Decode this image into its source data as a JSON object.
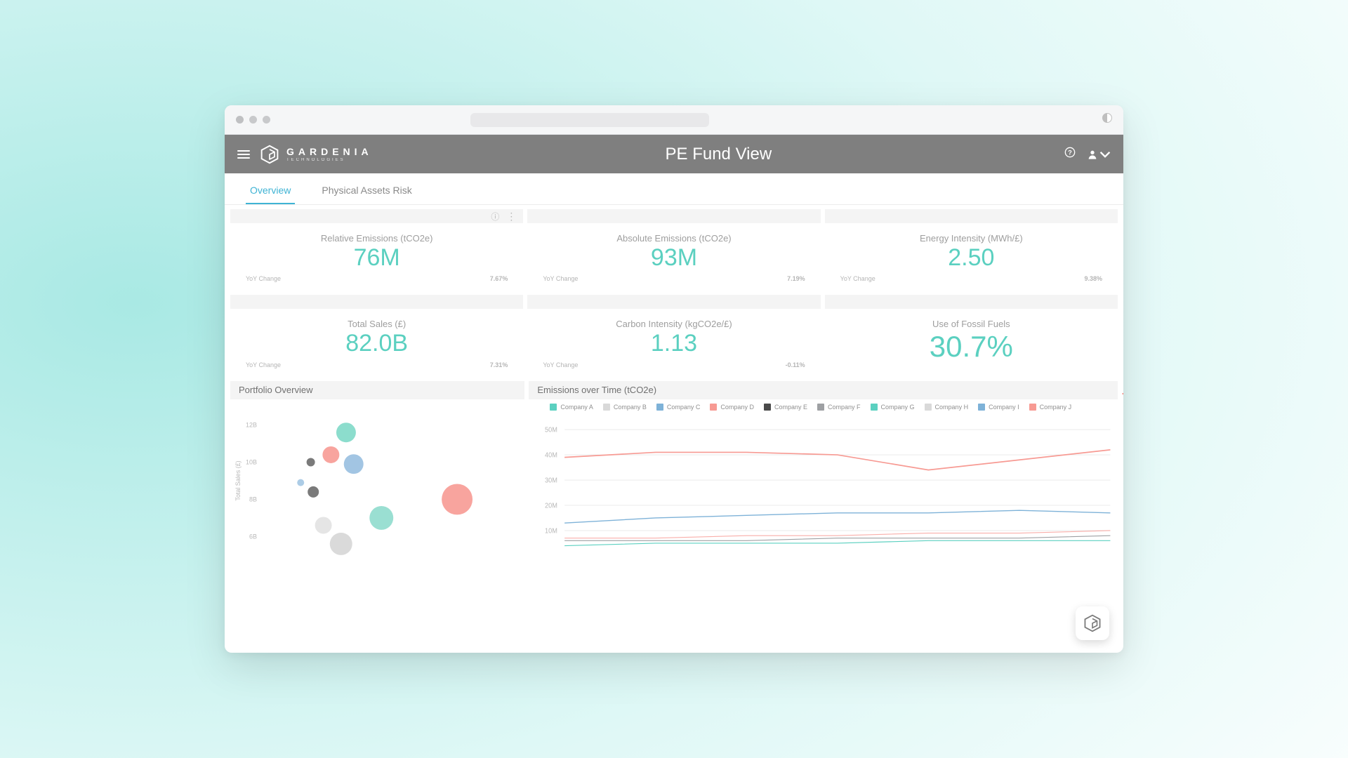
{
  "brand": {
    "name": "GARDENIA",
    "tagline": "TECHNOLOGIES"
  },
  "page_title": "PE Fund View",
  "tabs": [
    {
      "label": "Overview",
      "active": true
    },
    {
      "label": "Physical Assets Risk",
      "active": false
    }
  ],
  "kpi": [
    {
      "label": "Relative Emissions (tCO2e)",
      "value": "76M",
      "yoy_label": "YoY Change",
      "yoy_value": "7.67%",
      "show_icons": true
    },
    {
      "label": "Absolute Emissions (tCO2e)",
      "value": "93M",
      "yoy_label": "YoY Change",
      "yoy_value": "7.19%"
    },
    {
      "label": "Energy Intensity (MWh/£)",
      "value": "2.50",
      "yoy_label": "YoY Change",
      "yoy_value": "9.38%"
    },
    {
      "label": "Total Sales (£)",
      "value": "82.0B",
      "yoy_label": "YoY Change",
      "yoy_value": "7.31%"
    },
    {
      "label": "Carbon Intensity (kgCO2e/£)",
      "value": "1.13",
      "yoy_label": "YoY Change",
      "yoy_value": "-0.11%"
    },
    {
      "label": "Use of Fossil Fuels",
      "value": "30.7%",
      "big": true
    }
  ],
  "portfolio_chart": {
    "title": "Portfolio Overview",
    "y_axis_label": "Total Sales (£)",
    "y_ticks": [
      "12B",
      "10B",
      "8B",
      "6B"
    ],
    "y_tick_vals": [
      12,
      10,
      8,
      6
    ],
    "y_domain": [
      5,
      13
    ],
    "x_domain": [
      0,
      10
    ],
    "bubbles": [
      {
        "x": 3.2,
        "y": 11.6,
        "r": 14,
        "color": "#7fd9c8"
      },
      {
        "x": 2.6,
        "y": 10.4,
        "r": 12,
        "color": "#f79a93"
      },
      {
        "x": 1.8,
        "y": 10.0,
        "r": 6,
        "color": "#6b6b6b"
      },
      {
        "x": 3.5,
        "y": 9.9,
        "r": 14,
        "color": "#98bfe0"
      },
      {
        "x": 1.4,
        "y": 8.9,
        "r": 5,
        "color": "#a3c7e3"
      },
      {
        "x": 1.9,
        "y": 8.4,
        "r": 8,
        "color": "#6c6c6c"
      },
      {
        "x": 7.6,
        "y": 8.0,
        "r": 22,
        "color": "#f79a93"
      },
      {
        "x": 4.6,
        "y": 7.0,
        "r": 17,
        "color": "#8fdccd"
      },
      {
        "x": 2.3,
        "y": 6.6,
        "r": 12,
        "color": "#e2e2e2"
      },
      {
        "x": 3.0,
        "y": 5.6,
        "r": 16,
        "color": "#d6d6d6"
      }
    ]
  },
  "emissions_chart": {
    "title": "Emissions over Time (tCO2e)",
    "legend": [
      {
        "label": "Company A",
        "color": "#5bd0c0"
      },
      {
        "label": "Company B",
        "color": "#d9d9d9"
      },
      {
        "label": "Company C",
        "color": "#7eb2d8"
      },
      {
        "label": "Company D",
        "color": "#f79a93"
      },
      {
        "label": "Company E",
        "color": "#4a4a4a"
      },
      {
        "label": "Company F",
        "color": "#9ea0a3"
      },
      {
        "label": "Company G",
        "color": "#5bd0c0"
      },
      {
        "label": "Company H",
        "color": "#d9d9d9"
      },
      {
        "label": "Company I",
        "color": "#7eb2d8"
      },
      {
        "label": "Company J",
        "color": "#f79a93"
      }
    ],
    "y_ticks": [
      "50M",
      "40M",
      "30M",
      "20M",
      "10M"
    ],
    "y_tick_vals": [
      50,
      40,
      30,
      20,
      10
    ],
    "y_domain": [
      0,
      55
    ],
    "x_count": 7,
    "series": [
      {
        "color": "#f79a93",
        "width": 1.5,
        "values": [
          39,
          41,
          41,
          40,
          34,
          38,
          42
        ]
      },
      {
        "color": "#7eb2d8",
        "width": 1.2,
        "values": [
          13,
          15,
          16,
          17,
          17,
          18,
          17
        ]
      },
      {
        "color": "#f79a93",
        "width": 1.0,
        "values": [
          7,
          7,
          8,
          8,
          9,
          9,
          10
        ],
        "opacity": 0.8
      },
      {
        "color": "#9ea0a3",
        "width": 1.0,
        "values": [
          6,
          6,
          6,
          7,
          7,
          7,
          8
        ]
      },
      {
        "color": "#5bd0c0",
        "width": 1.0,
        "values": [
          4,
          5,
          5,
          5,
          6,
          6,
          6
        ]
      }
    ]
  },
  "colors": {
    "teal": "#5bd0c0",
    "tab_active": "#3fb3d4",
    "header": "#7f7f7f",
    "red": "#f79a93",
    "red_strong": "#f5726a"
  }
}
